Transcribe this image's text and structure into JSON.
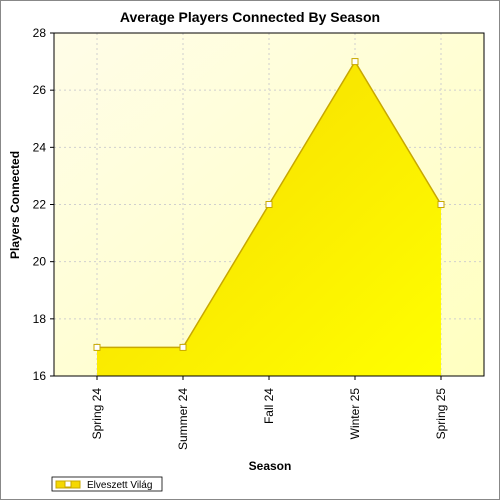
{
  "chart_data": {
    "type": "area",
    "title": "Average Players Connected By Season",
    "xlabel": "Season",
    "ylabel": "Players Connected",
    "categories": [
      "Spring 24",
      "Summer 24",
      "Fall 24",
      "Winter 25",
      "Spring 25"
    ],
    "series": [
      {
        "name": "Elveszett Világ",
        "values": [
          17,
          17,
          22,
          27,
          22
        ]
      }
    ],
    "ylim": [
      16,
      28
    ],
    "yticks": [
      16,
      18,
      20,
      22,
      24,
      26,
      28
    ],
    "grid": true,
    "legend": "bottom-left",
    "colors": {
      "fill_start": "#f5d800",
      "fill_end": "#ffff00",
      "line": "#c8a800",
      "marker_fill": "#ffffff",
      "plot_bg_start": "#fffde8",
      "plot_bg_end": "#ffffc0",
      "grid": "#cfcfcf"
    }
  }
}
